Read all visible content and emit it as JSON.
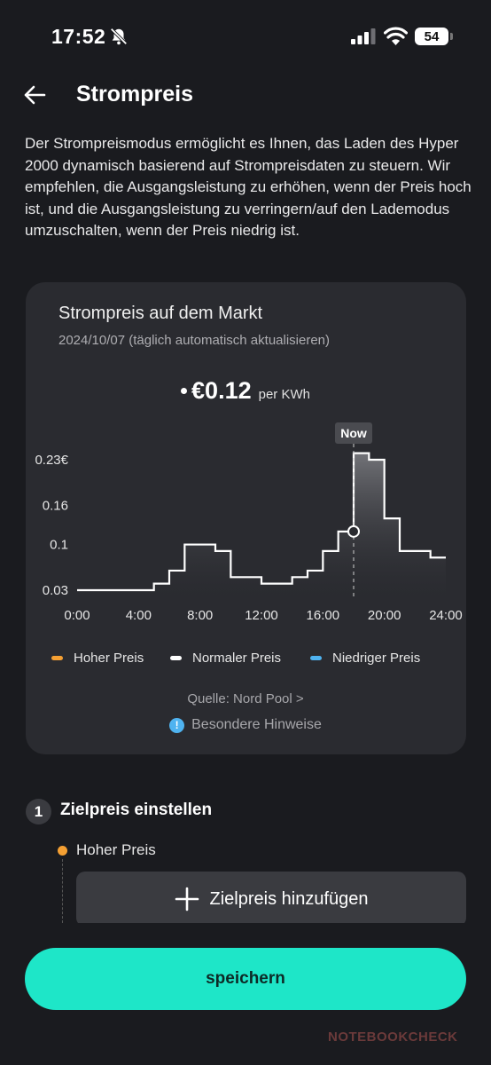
{
  "status_bar": {
    "time": "17:52",
    "battery": "54",
    "icons": [
      "bell-off-icon",
      "signal-icon",
      "wifi-icon",
      "battery-icon"
    ]
  },
  "header": {
    "title": "Strompreis",
    "back_icon": "arrow-left-icon"
  },
  "description": "Der Strompreismodus ermöglicht es Ihnen, das Laden des Hyper 2000 dynamisch basierend auf Strompreisdaten zu steuern. Wir empfehlen, die Ausgangsleistung zu erhöhen, wenn der Preis hoch ist, und die Ausgangsleistung zu verringern/auf den Lademodus umzuschalten, wenn der Preis niedrig ist.",
  "card": {
    "title": "Strompreis auf dem Markt",
    "date": "2024/10/07 (täglich automatisch aktualisieren)",
    "current_price": "€0.12",
    "price_unit": "per KWh",
    "source": "Quelle: Nord Pool >",
    "notes": "Besondere Hinweise",
    "legend": [
      {
        "label": "Hoher Preis",
        "color": "#f5a033"
      },
      {
        "label": "Normaler Preis",
        "color": "#ffffff"
      },
      {
        "label": "Niedriger Preis",
        "color": "#4fb3f0"
      }
    ]
  },
  "chart_data": {
    "type": "area",
    "x": [
      0,
      1,
      2,
      3,
      4,
      5,
      6,
      7,
      8,
      9,
      10,
      11,
      12,
      13,
      14,
      15,
      16,
      17,
      18,
      19,
      20,
      21,
      22,
      23,
      24
    ],
    "values": [
      0.03,
      0.03,
      0.03,
      0.03,
      0.03,
      0.04,
      0.06,
      0.1,
      0.1,
      0.09,
      0.05,
      0.05,
      0.04,
      0.04,
      0.05,
      0.06,
      0.09,
      0.12,
      0.24,
      0.23,
      0.14,
      0.09,
      0.09,
      0.08,
      0.08
    ],
    "ytick_labels": [
      "0.23€",
      "0.16",
      "0.1",
      "0.03"
    ],
    "ytick_values": [
      0.23,
      0.16,
      0.1,
      0.03
    ],
    "xtick_labels": [
      "0:00",
      "4:00",
      "8:00",
      "12:00",
      "16:00",
      "20:00",
      "24:00"
    ],
    "xtick_values": [
      0,
      4,
      8,
      12,
      16,
      20,
      24
    ],
    "ylim": [
      0.03,
      0.23
    ],
    "xlim": [
      0,
      24
    ],
    "now_label": "Now",
    "now_hour": 18,
    "now_value": 0.12,
    "line_color": "#ffffff"
  },
  "step": {
    "number": "1",
    "title": "Zielpreis einstellen",
    "level_label": "Hoher Preis",
    "add_label": "Zielpreis hinzufügen"
  },
  "save_label": "speichern",
  "watermark": "NOTEBOOKCHECK"
}
